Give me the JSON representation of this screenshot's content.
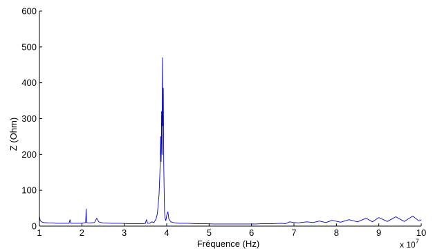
{
  "chart_data": {
    "type": "line",
    "title": "",
    "xlabel": "Fréquence (Hz)",
    "ylabel": "Z (Ohm)",
    "x_multiplier_label": "x 10",
    "x_multiplier_exponent": "7",
    "xlim": [
      1,
      10
    ],
    "ylim": [
      0,
      600
    ],
    "xticks": [
      "1",
      "2",
      "3",
      "4",
      "5",
      "6",
      "7",
      "8",
      "9",
      "10"
    ],
    "yticks": [
      "0",
      "100",
      "200",
      "300",
      "400",
      "500",
      "600"
    ],
    "grid": false,
    "line_color": "#0000cc",
    "series": [
      {
        "x": [
          1.0,
          1.02,
          1.05,
          1.1,
          1.2,
          1.3,
          1.4,
          1.5,
          1.6,
          1.7,
          1.72,
          1.74,
          1.8,
          1.9,
          2.0,
          2.05,
          2.09,
          2.1,
          2.11,
          2.15,
          2.2,
          2.3,
          2.35,
          2.4,
          2.45,
          2.5,
          2.7,
          2.9,
          3.1,
          3.3,
          3.45,
          3.5,
          3.52,
          3.55,
          3.6,
          3.65,
          3.7,
          3.75,
          3.78,
          3.8,
          3.82,
          3.84,
          3.86,
          3.87,
          3.88,
          3.89,
          3.9,
          3.91,
          3.92,
          3.93,
          3.94,
          3.95,
          3.96,
          3.97,
          3.98,
          4.0,
          4.03,
          4.05,
          4.08,
          4.1,
          4.15,
          4.2,
          4.3,
          4.5,
          4.7,
          4.9,
          5.1,
          5.3,
          5.5,
          5.7,
          5.9,
          6.1,
          6.3,
          6.5,
          6.7,
          6.8,
          6.9,
          7.0,
          7.1,
          7.3,
          7.45,
          7.6,
          7.75,
          7.9,
          8.1,
          8.3,
          8.5,
          8.7,
          8.85,
          9.0,
          9.2,
          9.4,
          9.6,
          9.8,
          9.95,
          10.0
        ],
        "y": [
          28,
          15,
          12,
          10,
          9,
          9,
          8,
          8,
          8,
          8,
          18,
          8,
          8,
          8,
          8,
          9,
          10,
          48,
          10,
          9,
          9,
          10,
          22,
          12,
          10,
          9,
          8,
          8,
          7,
          7,
          7,
          8,
          18,
          8,
          8,
          12,
          10,
          20,
          35,
          60,
          90,
          150,
          250,
          180,
          320,
          200,
          470,
          280,
          385,
          180,
          100,
          40,
          25,
          18,
          15,
          30,
          40,
          20,
          15,
          12,
          10,
          9,
          8,
          8,
          7,
          7,
          6,
          6,
          6,
          6,
          6,
          6,
          7,
          7,
          8,
          7,
          12,
          10,
          9,
          12,
          10,
          14,
          10,
          16,
          11,
          18,
          12,
          22,
          12,
          24,
          13,
          26,
          13,
          28,
          14,
          18
        ]
      }
    ]
  }
}
